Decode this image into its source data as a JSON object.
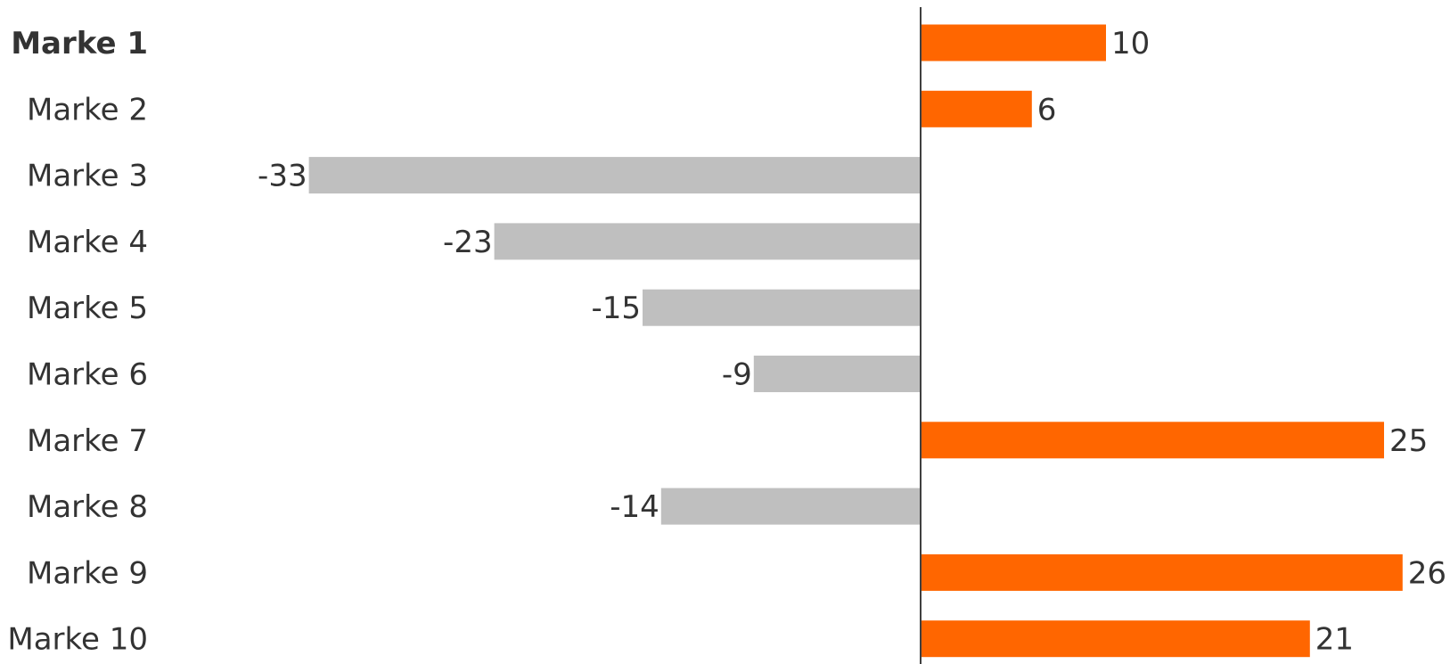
{
  "chart_data": {
    "type": "bar",
    "orientation": "horizontal",
    "categories": [
      "Marke 1",
      "Marke 2",
      "Marke 3",
      "Marke 4",
      "Marke 5",
      "Marke 6",
      "Marke 7",
      "Marke 8",
      "Marke 9",
      "Marke 10"
    ],
    "highlighted_category": "Marke 1",
    "values": [
      10,
      6,
      -33,
      -23,
      -15,
      -9,
      25,
      -14,
      26,
      21
    ],
    "title": "",
    "xlabel": "",
    "ylabel": "",
    "xlim": [
      -46,
      28
    ],
    "grid": false,
    "legend": "none",
    "colors": {
      "positive": "#FF6600",
      "negative": "#BFBFBF",
      "axis": "#404040",
      "text": "#333333"
    }
  }
}
